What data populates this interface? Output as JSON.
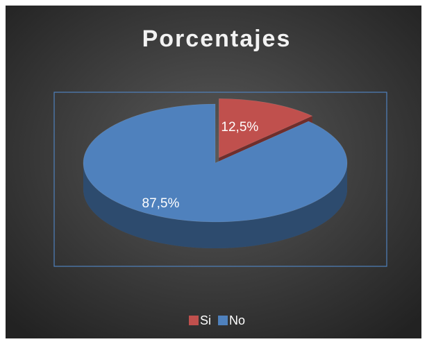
{
  "chart_data": {
    "type": "pie",
    "title": "Porcentajes",
    "categories": [
      "Si",
      "No"
    ],
    "values": [
      12.5,
      87.5
    ],
    "value_labels": [
      "12,5%",
      "87,5%"
    ],
    "colors": [
      "#c0504d",
      "#4f81bd"
    ],
    "legend": "bottom"
  }
}
